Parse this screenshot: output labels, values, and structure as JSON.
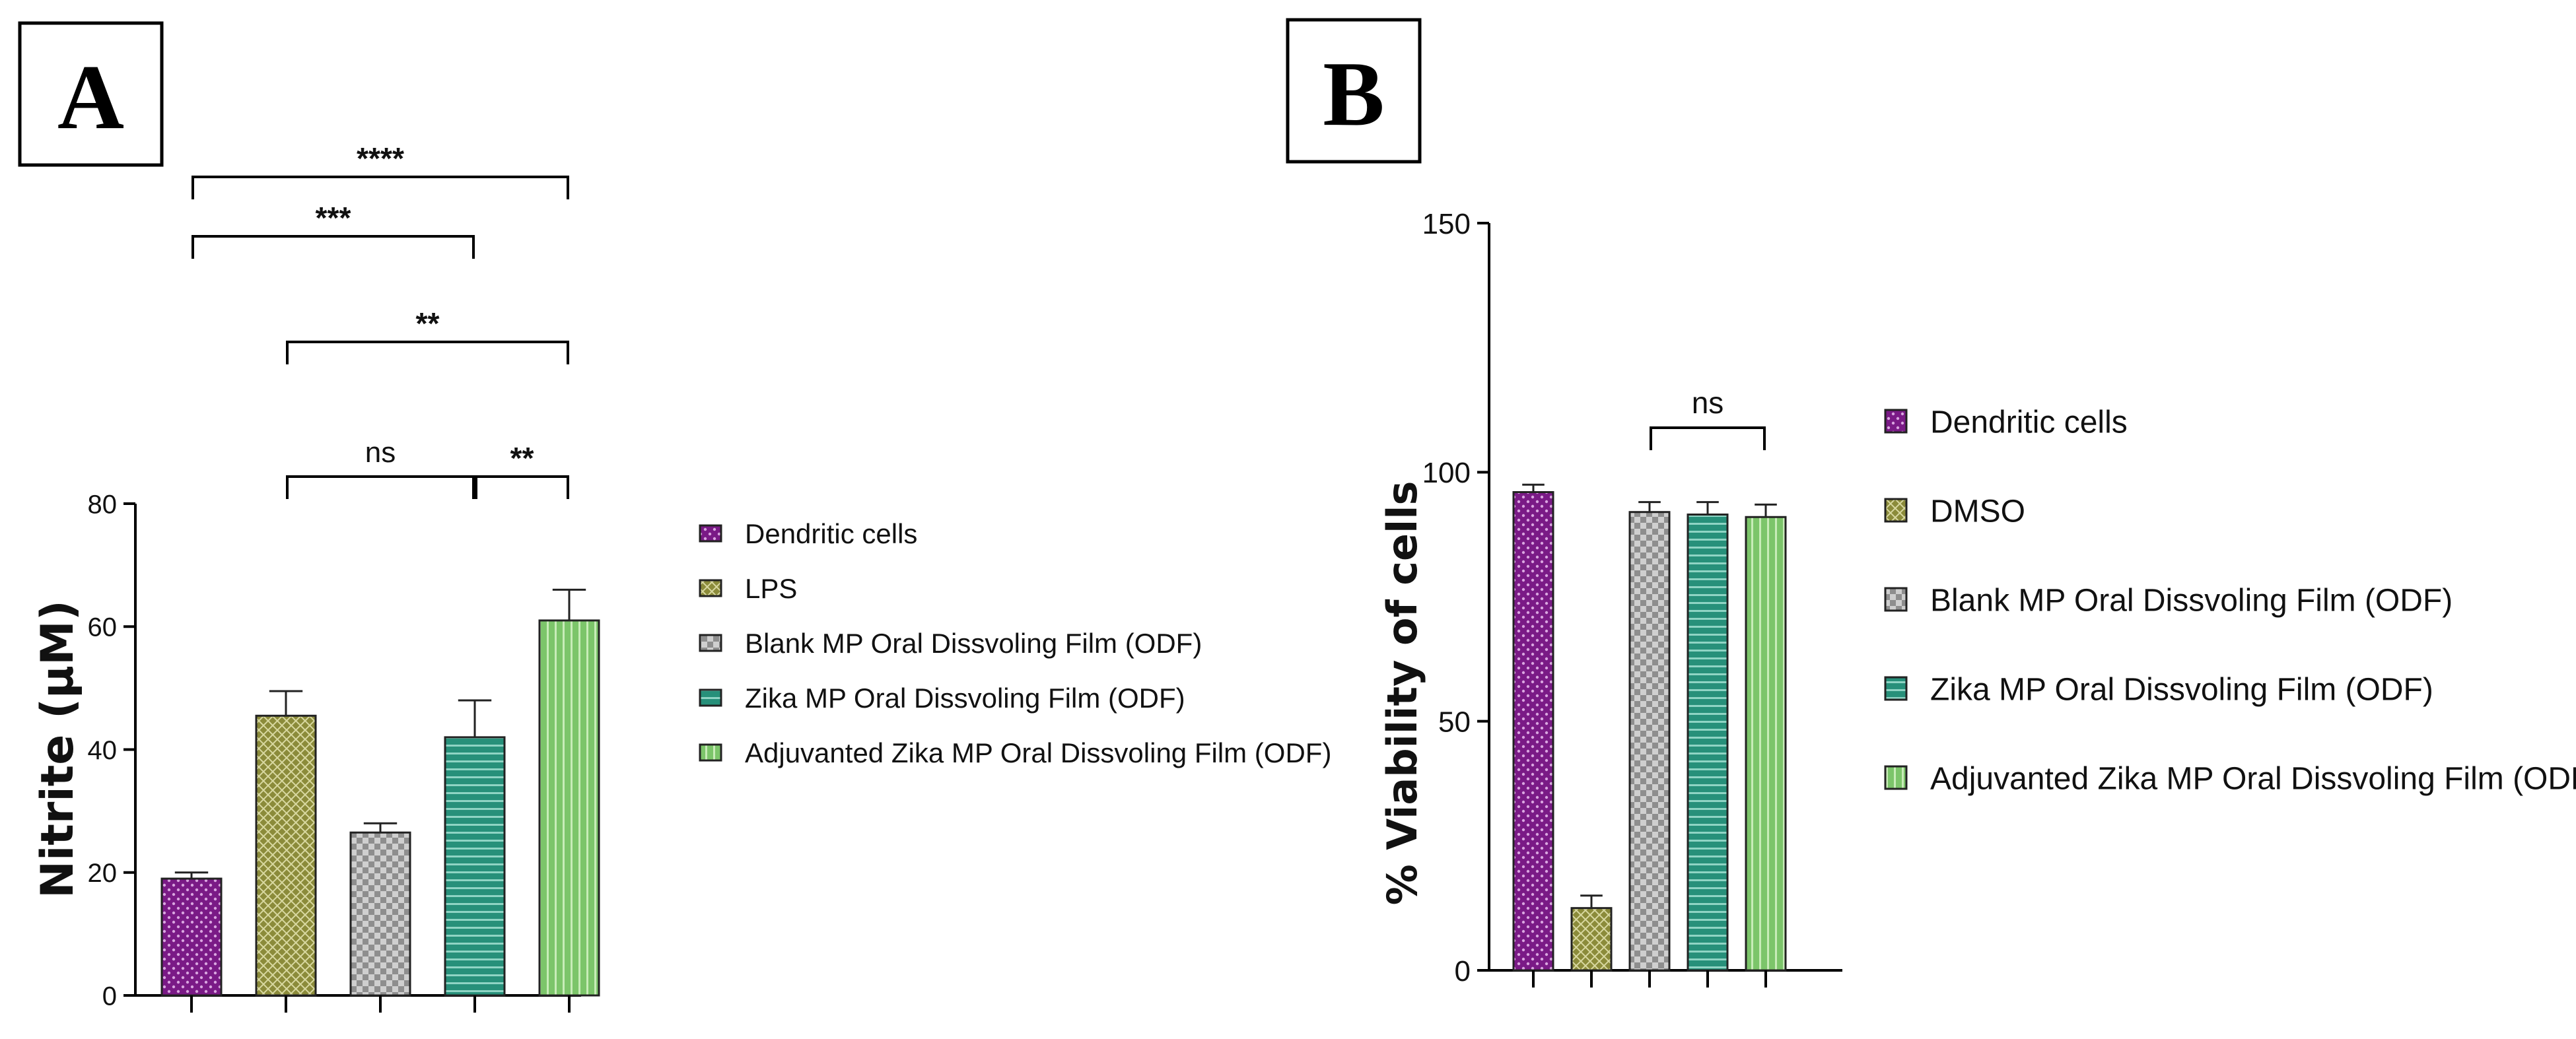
{
  "figure": {
    "panels": [
      {
        "id": "A",
        "label": "A"
      },
      {
        "id": "B",
        "label": "B"
      }
    ]
  },
  "chart_data": [
    {
      "panel": "A",
      "type": "bar",
      "title": "",
      "xlabel": "",
      "ylabel": "Nitrite (µM)",
      "ylim": [
        0,
        80
      ],
      "yticks": [
        0,
        20,
        40,
        60,
        80
      ],
      "grid": false,
      "legend_position": "right",
      "categories": [
        "Dendritic cells",
        "LPS",
        "Blank MP Oral Dissvoling Film (ODF)",
        "Zika MP Oral Dissvoling Film (ODF)",
        "Adjuvanted Zika MP Oral Dissvoling Film (ODF)"
      ],
      "values": [
        19,
        45.5,
        26.5,
        42,
        61
      ],
      "errors": [
        1,
        4,
        1.5,
        6,
        5
      ],
      "colors": [
        "#7a1a86",
        "#8b8b3a",
        "#8e8e8e",
        "#27907a",
        "#7cc56a"
      ],
      "patterns": [
        "dots",
        "crosshatch",
        "checker",
        "hstripes",
        "vstripes"
      ],
      "significance": [
        {
          "from": 0,
          "to": 4,
          "label": "****"
        },
        {
          "from": 0,
          "to": 3,
          "label": "***"
        },
        {
          "from": 1,
          "to": 4,
          "label": "**"
        },
        {
          "from": 1,
          "to": 3,
          "label": "ns"
        },
        {
          "from": 3,
          "to": 4,
          "label": "**"
        }
      ]
    },
    {
      "panel": "B",
      "type": "bar",
      "title": "",
      "xlabel": "",
      "ylabel": "% Viability of cells",
      "ylim": [
        0,
        150
      ],
      "yticks": [
        0,
        50,
        100,
        150
      ],
      "grid": false,
      "legend_position": "right",
      "categories": [
        "Dendritic cells",
        "DMSO",
        "Blank MP Oral Dissvoling Film (ODF)",
        "Zika MP Oral Dissvoling Film (ODF)",
        "Adjuvanted Zika MP Oral Dissvoling Film (ODF)"
      ],
      "values": [
        96,
        12.5,
        92,
        91.5,
        91
      ],
      "errors": [
        1.5,
        2.5,
        2,
        2.5,
        2.5
      ],
      "colors": [
        "#7a1a86",
        "#8b8b3a",
        "#8e8e8e",
        "#27907a",
        "#7cc56a"
      ],
      "patterns": [
        "dots",
        "crosshatch",
        "checker",
        "hstripes",
        "vstripes"
      ],
      "significance": [
        {
          "from": 2,
          "to": 4,
          "label": "ns"
        }
      ]
    }
  ]
}
